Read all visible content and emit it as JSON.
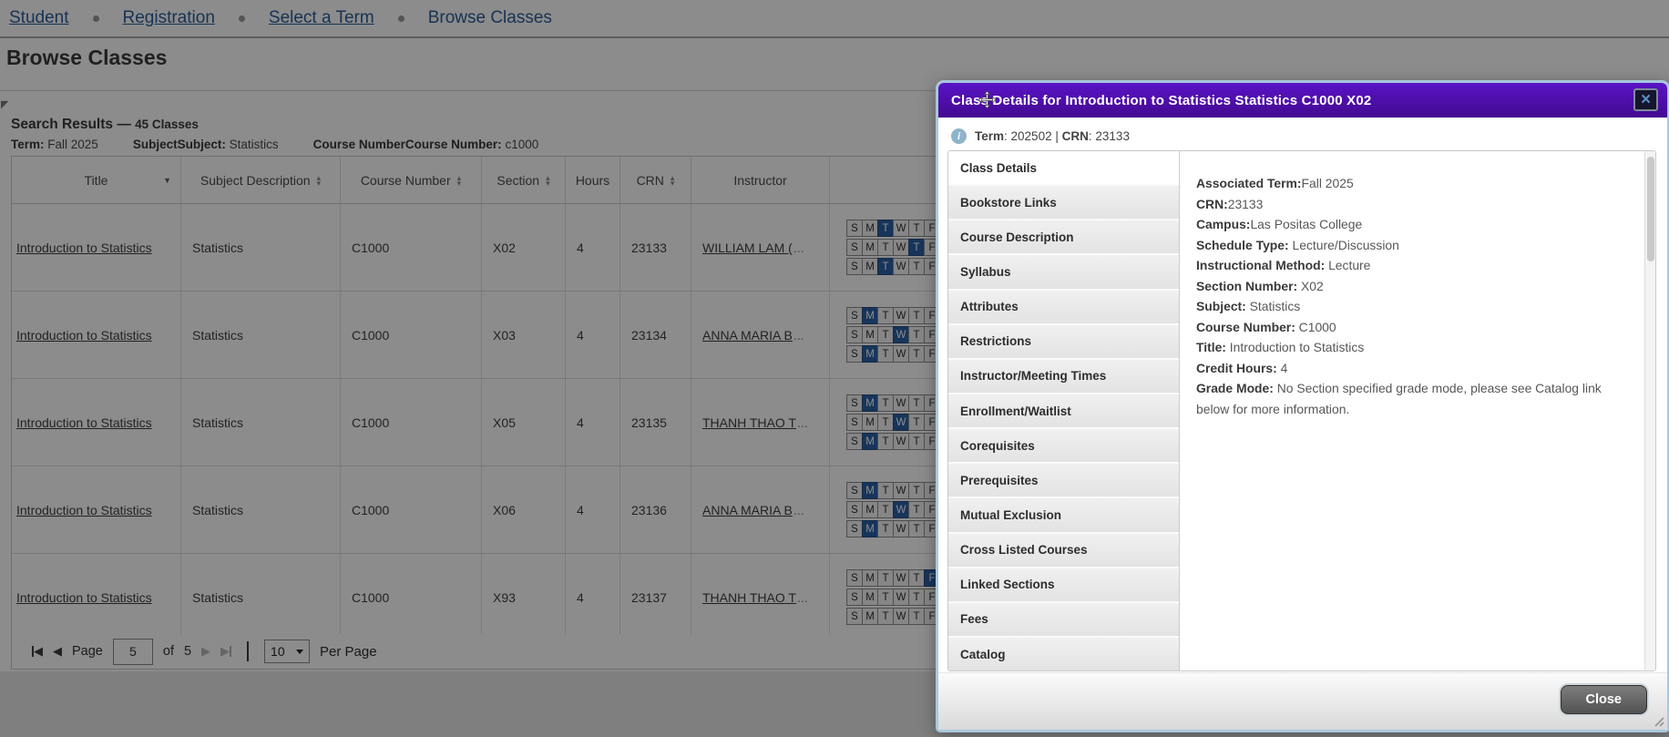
{
  "breadcrumb": {
    "items": [
      {
        "label": "Student"
      },
      {
        "label": "Registration"
      },
      {
        "label": "Select a Term"
      },
      {
        "label": "Browse Classes"
      }
    ]
  },
  "page": {
    "title": "Browse Classes"
  },
  "search": {
    "heading": "Search Results",
    "dash": "—",
    "count_text": "45 Classes",
    "criteria": [
      {
        "label": "Term:",
        "value": "Fall 2025"
      },
      {
        "label": "SubjectSubject:",
        "value": "Statistics"
      },
      {
        "label": "Course NumberCourse Number:",
        "value": "c1000"
      }
    ]
  },
  "table": {
    "columns": [
      {
        "label": "Title",
        "sort": "desc"
      },
      {
        "label": "Subject Description",
        "sort": "both"
      },
      {
        "label": "Course Number",
        "sort": "both"
      },
      {
        "label": "Section",
        "sort": "both"
      },
      {
        "label": "Hours",
        "sort": "none"
      },
      {
        "label": "CRN",
        "sort": "both"
      },
      {
        "label": "Instructor",
        "sort": "none"
      },
      {
        "label": "",
        "sort": "none"
      }
    ],
    "day_letters": [
      "S",
      "M",
      "T",
      "W",
      "T",
      "F",
      "S"
    ],
    "rows": [
      {
        "title": "Introduction to Statistics",
        "subject": "Statistics",
        "course": "C1000",
        "section": "X02",
        "hours": "4",
        "crn": "23133",
        "instructor": "WILLIAM LAM (",
        "instructor_more": "...",
        "meetings": [
          2,
          4,
          2
        ]
      },
      {
        "title": "Introduction to Statistics",
        "subject": "Statistics",
        "course": "C1000",
        "section": "X03",
        "hours": "4",
        "crn": "23134",
        "instructor": "ANNA MARIA B",
        "instructor_more": "...",
        "meetings": [
          1,
          3,
          1
        ]
      },
      {
        "title": "Introduction to Statistics",
        "subject": "Statistics",
        "course": "C1000",
        "section": "X05",
        "hours": "4",
        "crn": "23135",
        "instructor": "THANH THAO T",
        "instructor_more": "...",
        "meetings": [
          1,
          3,
          1
        ]
      },
      {
        "title": "Introduction to Statistics",
        "subject": "Statistics",
        "course": "C1000",
        "section": "X06",
        "hours": "4",
        "crn": "23136",
        "instructor": "ANNA MARIA B",
        "instructor_more": "...",
        "meetings": [
          1,
          3,
          1
        ]
      },
      {
        "title": "Introduction to Statistics",
        "subject": "Statistics",
        "course": "C1000",
        "section": "X93",
        "hours": "4",
        "crn": "23137",
        "instructor": "THANH THAO T",
        "instructor_more": "...",
        "meetings": [
          5,
          null,
          null
        ]
      }
    ]
  },
  "pagination": {
    "page_label": "Page",
    "page_value": "5",
    "of_label": "of",
    "total_pages": "5",
    "per_page_value": "10",
    "per_page_label": "Per Page"
  },
  "modal": {
    "title": "Class Details for Introduction to Statistics Statistics C1000 X02",
    "close_x": "×",
    "info": {
      "icon": "info-icon",
      "term_label": "Term",
      "term_value": "202502",
      "separator": "|",
      "crn_label": "CRN",
      "crn_value": "23133"
    },
    "nav": [
      {
        "label": "Class Details",
        "active": true
      },
      {
        "label": "Bookstore Links",
        "active": false
      },
      {
        "label": "Course Description",
        "active": false
      },
      {
        "label": "Syllabus",
        "active": false
      },
      {
        "label": "Attributes",
        "active": false
      },
      {
        "label": "Restrictions",
        "active": false
      },
      {
        "label": "Instructor/Meeting Times",
        "active": false
      },
      {
        "label": "Enrollment/Waitlist",
        "active": false
      },
      {
        "label": "Corequisites",
        "active": false
      },
      {
        "label": "Prerequisites",
        "active": false
      },
      {
        "label": "Mutual Exclusion",
        "active": false
      },
      {
        "label": "Cross Listed Courses",
        "active": false
      },
      {
        "label": "Linked Sections",
        "active": false
      },
      {
        "label": "Fees",
        "active": false
      },
      {
        "label": "Catalog",
        "active": false
      }
    ],
    "details": [
      {
        "label": "Associated Term:",
        "value": "Fall 2025",
        "space": false
      },
      {
        "label": "CRN:",
        "value": "23133",
        "space": false
      },
      {
        "label": "Campus:",
        "value": "Las Positas College",
        "space": false
      },
      {
        "label": "Schedule Type:",
        "value": "Lecture/Discussion",
        "space": true
      },
      {
        "label": "Instructional Method:",
        "value": "Lecture",
        "space": true
      },
      {
        "label": "Section Number:",
        "value": "X02",
        "space": true
      },
      {
        "label": "Subject:",
        "value": "Statistics",
        "space": true
      },
      {
        "label": "Course Number:",
        "value": "C1000",
        "space": true
      },
      {
        "label": "Title:",
        "value": "Introduction to Statistics",
        "space": true
      },
      {
        "label": "Credit Hours:",
        "value": "4",
        "space": true
      },
      {
        "label": "Grade Mode:",
        "value": "No Section specified grade mode, please see Catalog link below for more information.",
        "space": true
      }
    ],
    "close_label": "Close"
  },
  "colors": {
    "header_purple_top": "#5a13c6",
    "header_purple_bottom": "#430a90",
    "day_selected": "#2a62a7",
    "link_blue": "#2b5d9b",
    "overlay": "rgba(0,0,0,0.45)"
  }
}
